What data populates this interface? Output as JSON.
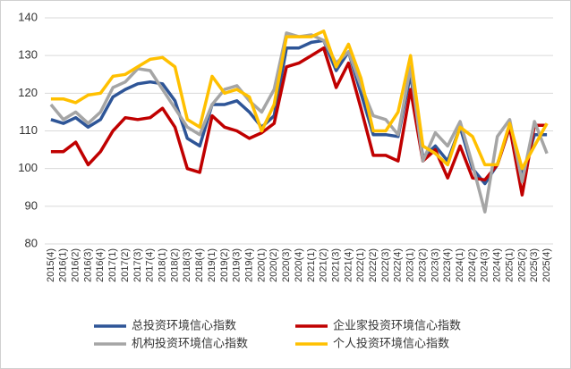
{
  "chart_data": {
    "type": "line",
    "categories": [
      "2015(4)",
      "2016(1)",
      "2016(2)",
      "2016(3)",
      "2016(4)",
      "2017(1)",
      "2017(2)",
      "2017(3)",
      "2017(4)",
      "2018(1)",
      "2018(2)",
      "2018(3)",
      "2018(4)",
      "2019(1)",
      "2019(2)",
      "2019(3)",
      "2019(4)",
      "2020(1)",
      "2020(2)",
      "2020(3)",
      "2020(4)",
      "2021(1)",
      "2021(2)",
      "2021(3)",
      "2021(4)",
      "2022(1)",
      "2022(2)",
      "2022(3)",
      "2022(4)",
      "2023(1)",
      "2023(2)",
      "2023(3)",
      "2023(4)",
      "2024(1)",
      "2024(2)",
      "2024(3)",
      "2024(4)",
      "2025(1)",
      "2025(2)",
      "2025(3)",
      "2025(4)"
    ],
    "series": [
      {
        "name": "总投资环境信心指数",
        "color": "#2e5597",
        "values": [
          113,
          112,
          113.5,
          111,
          113,
          119,
          121,
          122.5,
          123,
          122.5,
          118,
          108,
          106,
          117,
          117,
          118,
          115,
          111,
          114,
          132,
          132,
          133.5,
          134,
          126,
          131,
          120,
          109,
          109,
          108.5,
          125,
          103,
          106,
          102,
          111,
          100,
          96,
          101,
          111,
          98,
          109,
          109
        ]
      },
      {
        "name": "企业家投资环境信心指数",
        "color": "#c00000",
        "values": [
          104.5,
          104.5,
          107,
          101,
          104.5,
          110,
          113.5,
          113,
          113.5,
          116,
          111,
          100,
          99,
          114,
          111,
          110,
          108,
          109.5,
          112,
          127,
          128,
          130,
          132,
          121.5,
          128,
          116,
          103.5,
          103.5,
          102,
          121,
          102,
          105,
          97.5,
          106,
          97.5,
          97,
          101,
          111,
          93,
          111.5,
          111.5
        ]
      },
      {
        "name": "机构投资环境信心指数",
        "color": "#a5a5a5",
        "values": [
          117,
          113,
          115,
          112,
          115,
          121.5,
          123,
          126.5,
          126,
          121,
          116,
          111,
          109,
          117,
          121,
          122,
          118,
          115,
          121,
          136,
          135,
          135.5,
          134,
          128,
          131,
          122,
          114,
          113,
          109,
          127,
          102,
          109.5,
          106,
          112.5,
          101,
          88.5,
          108.5,
          113,
          96.5,
          112.5,
          104
        ]
      },
      {
        "name": "个人投资环境信心指数",
        "color": "#ffc000",
        "values": [
          118.5,
          118.5,
          117.5,
          119.5,
          120,
          124.5,
          125,
          127,
          129,
          129.5,
          127,
          113,
          111,
          124.5,
          120,
          121,
          119,
          110,
          117,
          135,
          135,
          135,
          136.5,
          127,
          133,
          124,
          110,
          110,
          115,
          130,
          106,
          104,
          101,
          111,
          108.5,
          101,
          101,
          112,
          100,
          106,
          112
        ]
      }
    ],
    "ylim": [
      80,
      140
    ],
    "yticks": [
      80,
      90,
      100,
      110,
      120,
      130,
      140
    ],
    "grid": true
  }
}
